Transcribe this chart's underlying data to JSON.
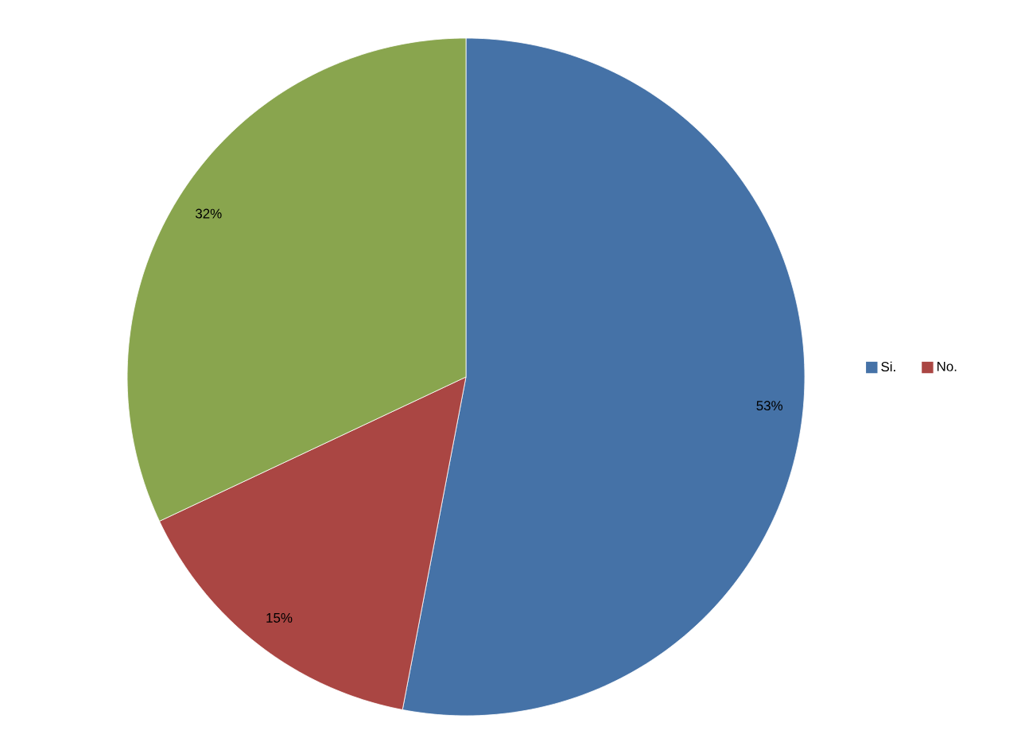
{
  "chart_data": {
    "type": "pie",
    "categories": [
      "Si.",
      "No.",
      null
    ],
    "values": [
      53,
      15,
      32
    ],
    "colors": [
      "#4572a7",
      "#aa4643",
      "#89a54e"
    ],
    "value_labels": [
      "53%",
      "15%",
      "32%"
    ],
    "legend": "right"
  }
}
